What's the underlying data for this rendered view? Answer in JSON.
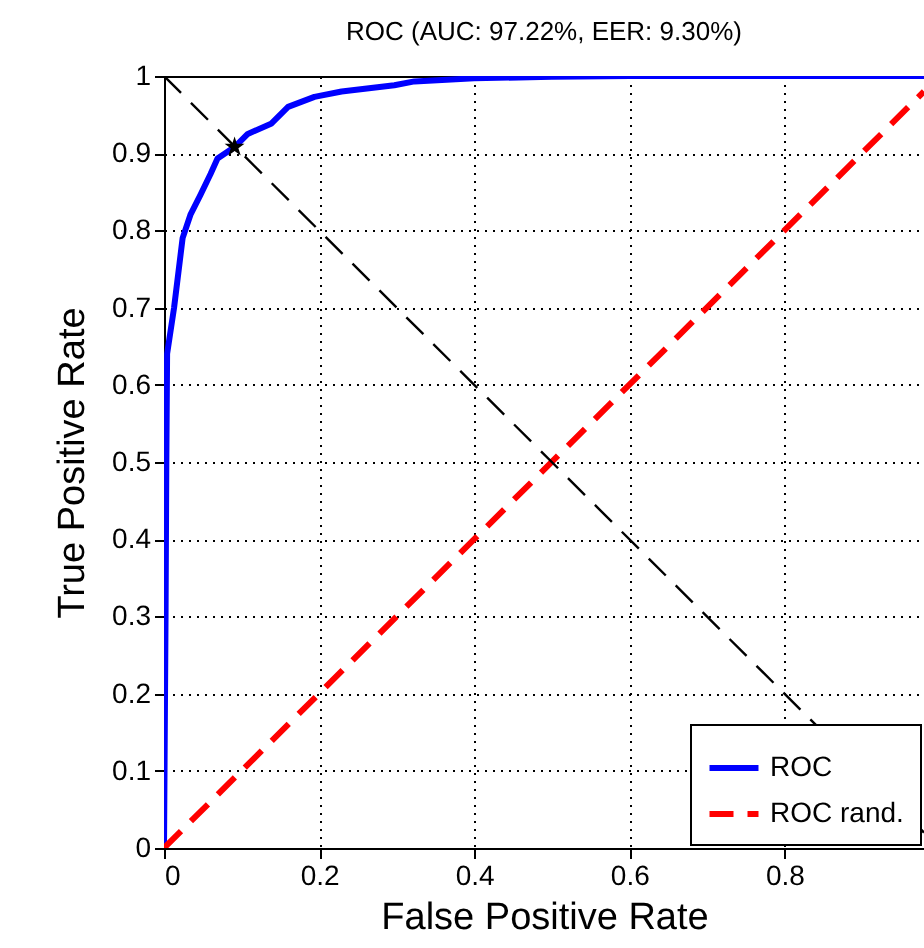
{
  "chart_data": {
    "type": "line",
    "title": "ROC (AUC: 97.22%, EER: 9.30%)",
    "xlabel": "False Positive Rate",
    "ylabel": "True Positive Rate",
    "xlim": [
      0,
      0.98
    ],
    "ylim": [
      0,
      1
    ],
    "xticks": [
      0,
      0.2,
      0.4,
      0.6,
      0.8
    ],
    "yticks": [
      0,
      0.1,
      0.2,
      0.3,
      0.4,
      0.5,
      0.6,
      0.7,
      0.8,
      0.9,
      1
    ],
    "grid": true,
    "legend": "bottom right",
    "series": [
      {
        "name": "ROC",
        "color": "#0000ff",
        "line_style": "solid",
        "x": [
          0,
          0.002,
          0.003,
          0.004,
          0.013,
          0.024,
          0.034,
          0.047,
          0.06,
          0.069,
          0.091,
          0.108,
          0.138,
          0.16,
          0.194,
          0.229,
          0.297,
          0.323,
          0.4,
          0.5,
          0.6,
          0.98
        ],
        "values": [
          0,
          0.3,
          0.5,
          0.64,
          0.7,
          0.79,
          0.82,
          0.846,
          0.873,
          0.893,
          0.908,
          0.925,
          0.938,
          0.96,
          0.973,
          0.98,
          0.988,
          0.993,
          0.997,
          0.999,
          1,
          1
        ]
      },
      {
        "name": "ROC rand.",
        "color": "#ff0000",
        "line_style": "dashed",
        "x": [
          0,
          0.98
        ],
        "values": [
          0,
          0.98
        ]
      },
      {
        "color": "#000000",
        "line_style": "dashed",
        "x": [
          0,
          0.98
        ],
        "values": [
          1,
          0.02
        ]
      },
      {
        "type": "scatter",
        "color": "#000000",
        "marker": "star",
        "x": [
          0.091
        ],
        "values": [
          0.908
        ]
      }
    ]
  }
}
